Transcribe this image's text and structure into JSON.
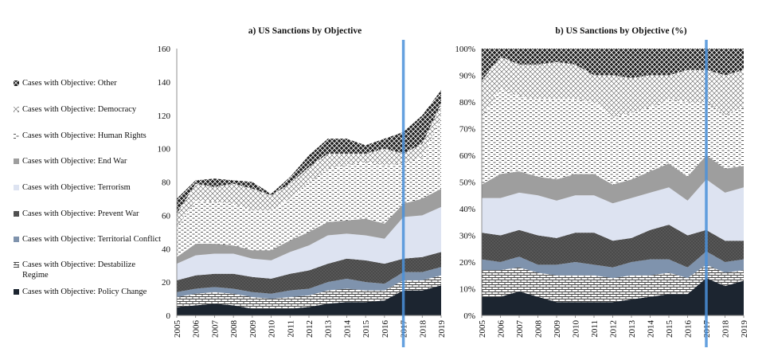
{
  "chart_data": [
    {
      "type": "area",
      "stacked": true,
      "title": "a) US Sanctions by Objective",
      "x": [
        2005,
        2006,
        2007,
        2008,
        2009,
        2010,
        2011,
        2012,
        2013,
        2014,
        2015,
        2016,
        2017,
        2018,
        2019
      ],
      "ylim": [
        0,
        160
      ],
      "yticks": [
        0,
        20,
        40,
        60,
        80,
        100,
        120,
        140,
        160
      ],
      "highlight_year": 2017,
      "series": [
        {
          "name": "Cases with Objective: Policy Change",
          "values": [
            5,
            6,
            7,
            6,
            4,
            4,
            4,
            5,
            7,
            8,
            8,
            9,
            15,
            15,
            18
          ]
        },
        {
          "name": "Cases with Objective: Destabilize Regime",
          "values": [
            6,
            7,
            7,
            7,
            7,
            6,
            7,
            7,
            8,
            8,
            7,
            6,
            6,
            6,
            6
          ]
        },
        {
          "name": "Cases with Objective: Territorial Conflict",
          "values": [
            3,
            3,
            3,
            3,
            3,
            3,
            4,
            4,
            5,
            6,
            5,
            4,
            5,
            5,
            5
          ]
        },
        {
          "name": "Cases with Objective: Prevent War",
          "values": [
            7,
            8,
            8,
            9,
            9,
            9,
            10,
            11,
            11,
            12,
            13,
            12,
            8,
            9,
            9
          ]
        },
        {
          "name": "Cases with Objective: Terrorism",
          "values": [
            10,
            12,
            12,
            12,
            11,
            11,
            13,
            15,
            17,
            15,
            15,
            15,
            25,
            25,
            27
          ]
        },
        {
          "name": "Cases with Objective: End War",
          "values": [
            4,
            7,
            6,
            5,
            5,
            6,
            7,
            8,
            8,
            8,
            10,
            9,
            8,
            10,
            11
          ]
        },
        {
          "name": "Cases with Objective: Human Rights",
          "values": [
            18,
            26,
            25,
            25,
            24,
            24,
            25,
            30,
            32,
            33,
            34,
            35,
            24,
            25,
            43
          ]
        },
        {
          "name": "Cases with Objective: Democracy",
          "values": [
            8,
            10,
            9,
            12,
            13,
            9,
            9,
            9,
            9,
            7,
            5,
            10,
            6,
            8,
            8
          ]
        },
        {
          "name": "Cases with Objective: Other",
          "values": [
            9,
            2,
            5,
            2,
            4,
            1,
            4,
            7,
            9,
            9,
            5,
            6,
            13,
            17,
            8
          ]
        }
      ]
    },
    {
      "type": "area",
      "stacked": true,
      "percent": true,
      "title": "b) US Sanctions by Objective (%)",
      "x": [
        2005,
        2006,
        2007,
        2008,
        2009,
        2010,
        2011,
        2012,
        2013,
        2014,
        2015,
        2016,
        2017,
        2018,
        2019
      ],
      "ylim": [
        0,
        100
      ],
      "yticks": [
        "0%",
        "10%",
        "20%",
        "30%",
        "40%",
        "50%",
        "60%",
        "70%",
        "80%",
        "90%",
        "100%"
      ],
      "highlight_year": 2017,
      "series": [
        {
          "name": "Cases with Objective: Policy Change",
          "values": [
            7,
            7,
            9,
            7,
            5,
            5,
            5,
            5,
            6,
            7,
            8,
            8,
            14,
            11,
            13
          ]
        },
        {
          "name": "Cases with Objective: Destabilize Regime",
          "values": [
            10,
            10,
            9,
            9,
            10,
            10,
            10,
            9,
            9,
            8,
            8,
            6,
            5,
            5,
            4
          ]
        },
        {
          "name": "Cases with Objective: Territorial Conflict",
          "values": [
            4,
            3,
            4,
            3,
            4,
            5,
            4,
            4,
            5,
            6,
            5,
            4,
            5,
            4,
            4
          ]
        },
        {
          "name": "Cases with Objective: Prevent War",
          "values": [
            10,
            10,
            10,
            11,
            10,
            11,
            12,
            10,
            9,
            11,
            13,
            12,
            8,
            8,
            7
          ]
        },
        {
          "name": "Cases with Objective: Terrorism",
          "values": [
            13,
            14,
            14,
            15,
            14,
            14,
            14,
            14,
            15,
            14,
            14,
            13,
            19,
            18,
            20
          ]
        },
        {
          "name": "Cases with Objective: End War",
          "values": [
            5,
            9,
            8,
            7,
            8,
            8,
            8,
            7,
            7,
            8,
            9,
            9,
            9,
            9,
            8
          ]
        },
        {
          "name": "Cases with Objective: Human Rights",
          "values": [
            25,
            32,
            28,
            29,
            30,
            28,
            27,
            25,
            25,
            24,
            24,
            28,
            20,
            20,
            22
          ]
        },
        {
          "name": "Cases with Objective: Democracy",
          "values": [
            14,
            12,
            12,
            13,
            14,
            13,
            10,
            16,
            13,
            12,
            9,
            12,
            12,
            15,
            14
          ]
        },
        {
          "name": "Cases with Objective: Other",
          "values": [
            12,
            3,
            6,
            6,
            5,
            6,
            10,
            10,
            11,
            10,
            10,
            8,
            8,
            10,
            8
          ]
        }
      ]
    }
  ],
  "legend": {
    "items": [
      {
        "label": "Cases with Objective: Other",
        "pattern": "pat-other"
      },
      {
        "label": "Cases with Objective: Democracy",
        "pattern": "pat-democracy"
      },
      {
        "label": "Cases with Objective: Human Rights",
        "pattern": "pat-human"
      },
      {
        "label": "Cases with Objective: End War",
        "pattern": "pat-endwar"
      },
      {
        "label": "Cases with Objective: Terrorism",
        "pattern": "pat-terror"
      },
      {
        "label": "Cases with Objective: Prevent War",
        "pattern": "pat-prevent"
      },
      {
        "label": "Cases with Objective: Territorial Conflict",
        "pattern": "pat-territorial"
      },
      {
        "label": "Cases with Objective: Destabilize Regime",
        "pattern": "pat-destab"
      },
      {
        "label": "Cases with Objective: Policy Change",
        "pattern": "pat-policy"
      }
    ]
  },
  "colors": {
    "highlight_line": "#4a90d9",
    "axis": "#777777",
    "policy": "#1c2530",
    "territorial": "#7f93ad",
    "prevent": "#4c4c4c",
    "terrorism": "#dde3f1",
    "endwar": "#9e9e9e"
  }
}
